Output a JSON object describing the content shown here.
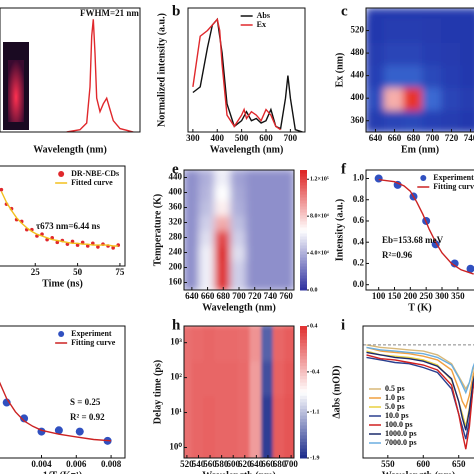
{
  "chart_data": [
    {
      "type": "line",
      "xlabel": "Wavelength (nm)",
      "xlim": [
        400,
        820
      ],
      "ylim": [
        0,
        1.1
      ],
      "annotations": [
        "FWHM=21 nm"
      ],
      "series": [
        {
          "color": "#e0282c",
          "mode": "line",
          "x": [
            600,
            640,
            660,
            670,
            675,
            680,
            685,
            690,
            700,
            710,
            720,
            730,
            740,
            760,
            800
          ],
          "values": [
            0,
            0.02,
            0.08,
            0.4,
            0.85,
            1.0,
            0.7,
            0.3,
            0.18,
            0.25,
            0.3,
            0.2,
            0.1,
            0.03,
            0
          ]
        }
      ]
    },
    {
      "type": "line",
      "panel": "b",
      "xlabel": "Wavelength (nm)",
      "ylabel": "Normalized intensity (a.u.)",
      "xlim": [
        280,
        760
      ],
      "xticks": [
        300,
        400,
        500,
        600,
        700
      ],
      "ylim": [
        0,
        1.1
      ],
      "legend": "upper right",
      "series": [
        {
          "name": "Abs",
          "color": "#111111",
          "mode": "line",
          "x": [
            300,
            330,
            360,
            380,
            400,
            420,
            440,
            470,
            500,
            520,
            540,
            560,
            580,
            600,
            620,
            640,
            660,
            680,
            690,
            700,
            720,
            750
          ],
          "values": [
            0.35,
            0.4,
            0.75,
            0.95,
            1.0,
            0.7,
            0.25,
            0.05,
            0.1,
            0.18,
            0.1,
            0.12,
            0.08,
            0.1,
            0.2,
            0.05,
            0.03,
            0.3,
            0.5,
            0.3,
            0.02,
            0
          ]
        },
        {
          "name": "Ex",
          "color": "#e0282c",
          "mode": "line",
          "x": [
            300,
            330,
            360,
            380,
            400,
            410,
            420,
            440,
            470,
            500,
            510,
            520,
            540,
            560,
            580,
            600,
            620,
            640,
            660
          ],
          "values": [
            0.4,
            0.85,
            0.9,
            0.95,
            1.0,
            0.9,
            0.6,
            0.15,
            0.05,
            0.15,
            0.2,
            0.12,
            0.18,
            0.15,
            0.1,
            0.2,
            0.15,
            0.05,
            0.02
          ]
        }
      ]
    },
    {
      "type": "heatmap",
      "panel": "c",
      "xlabel": "Em (nm)",
      "ylabel": "Ex (nm)",
      "x": [
        640,
        660,
        680,
        700,
        720,
        740
      ],
      "y": [
        360,
        400,
        440,
        480,
        520
      ],
      "xlim": [
        630,
        750
      ],
      "ylim": [
        340,
        560
      ],
      "xticks": [
        640,
        660,
        680,
        700,
        720,
        740
      ],
      "yticks": [
        360,
        400,
        440,
        480,
        520
      ],
      "zlim": [
        0,
        1
      ],
      "colormap": [
        "#2233aa",
        "#3d6fd6",
        "#ffffff",
        "#e8342a"
      ],
      "z": [
        [
          0.05,
          0.1,
          0.12,
          0.08,
          0.05,
          0.03
        ],
        [
          0.15,
          0.8,
          1.0,
          0.3,
          0.1,
          0.05
        ],
        [
          0.08,
          0.25,
          0.25,
          0.12,
          0.06,
          0.03
        ],
        [
          0.05,
          0.1,
          0.1,
          0.06,
          0.04,
          0.02
        ],
        [
          0.03,
          0.05,
          0.05,
          0.04,
          0.03,
          0.02
        ]
      ]
    },
    {
      "type": "line",
      "xlabel": "Time (ns)",
      "xlim": [
        3,
        78
      ],
      "xticks": [
        25,
        50,
        75
      ],
      "ylim": [
        0,
        1.1
      ],
      "legend": "upper right",
      "annotations": [
        "τ673 nm=6.44 ns"
      ],
      "series": [
        {
          "name": "DR-NBE-CDs",
          "color": "#e0282c",
          "mode": "markers",
          "x": [
            5,
            8,
            11,
            14,
            17,
            20,
            23,
            26,
            29,
            32,
            35,
            38,
            41,
            44,
            47,
            50,
            53,
            56,
            59,
            62,
            65,
            68,
            71,
            74
          ],
          "values": [
            0.84,
            0.68,
            0.63,
            0.51,
            0.49,
            0.4,
            0.4,
            0.33,
            0.35,
            0.29,
            0.31,
            0.26,
            0.28,
            0.24,
            0.27,
            0.23,
            0.26,
            0.22,
            0.25,
            0.21,
            0.24,
            0.22,
            0.2,
            0.23
          ]
        },
        {
          "name": "Fitted curve",
          "color": "#f2c01e",
          "mode": "line",
          "x": [
            5,
            8,
            11,
            14,
            17,
            20,
            23,
            26,
            29,
            32,
            35,
            38,
            41,
            44,
            47,
            50,
            53,
            56,
            59,
            62,
            65,
            68,
            71,
            74
          ],
          "values": [
            0.82,
            0.7,
            0.61,
            0.53,
            0.47,
            0.42,
            0.38,
            0.35,
            0.33,
            0.31,
            0.29,
            0.28,
            0.27,
            0.26,
            0.25,
            0.25,
            0.24,
            0.24,
            0.23,
            0.23,
            0.23,
            0.23,
            0.22,
            0.22
          ]
        }
      ]
    },
    {
      "type": "heatmap",
      "panel": "e",
      "xlabel": "Wavelength (nm)",
      "ylabel": "Temperature (K)",
      "x": [
        640,
        660,
        680,
        700,
        720,
        740,
        760
      ],
      "y": [
        160,
        200,
        240,
        280,
        320,
        360,
        400,
        440
      ],
      "xlim": [
        630,
        770
      ],
      "ylim": [
        140,
        460
      ],
      "xticks": [
        640,
        660,
        680,
        700,
        720,
        740,
        760
      ],
      "yticks": [
        160,
        200,
        240,
        280,
        320,
        360,
        400,
        440
      ],
      "zlim": [
        0,
        130000
      ],
      "colormap": [
        "#2d2f9e",
        "#ffffff",
        "#dd2222"
      ],
      "cbticks": [
        {
          "value": 120000,
          "label": "1.2×10⁵"
        },
        {
          "value": 80000,
          "label": "8.0×10⁴"
        },
        {
          "value": 40000,
          "label": "4.0×10⁴"
        },
        {
          "value": 0,
          "label": "0.0"
        }
      ],
      "z": [
        [
          30000,
          60000,
          125000,
          50000,
          30000,
          30000,
          30000
        ],
        [
          30000,
          60000,
          125000,
          50000,
          30000,
          30000,
          30000
        ],
        [
          30000,
          60000,
          128000,
          55000,
          30000,
          30000,
          30000
        ],
        [
          30000,
          55000,
          120000,
          50000,
          30000,
          30000,
          30000
        ],
        [
          30000,
          50000,
          90000,
          45000,
          30000,
          30000,
          30000
        ],
        [
          30000,
          45000,
          70000,
          40000,
          30000,
          30000,
          30000
        ],
        [
          30000,
          42000,
          65000,
          38000,
          30000,
          30000,
          30000
        ],
        [
          30000,
          40000,
          60000,
          36000,
          30000,
          30000,
          30000
        ]
      ]
    },
    {
      "type": "line",
      "panel": "f",
      "xlabel": "T (K)",
      "ylabel": "Intensity (a.u.)",
      "xlim": [
        60,
        420
      ],
      "xticks": [
        100,
        150,
        200,
        250,
        300,
        350
      ],
      "ylim": [
        -0.05,
        1.08
      ],
      "yticks": [
        {
          "value": 0,
          "label": "0.0"
        },
        0.2,
        0.4,
        0.6,
        0.8,
        {
          "value": 1,
          "label": "1.0"
        }
      ],
      "legend": "upper right",
      "annotations": [
        "Eb=153.68 meV",
        "R²=0.96"
      ],
      "series": [
        {
          "name": "Experiment",
          "color": "#3050c0",
          "mode": "markers",
          "x": [
            100,
            160,
            210,
            250,
            280,
            340,
            390
          ],
          "values": [
            1.0,
            0.94,
            0.83,
            0.6,
            0.38,
            0.2,
            0.15
          ]
        },
        {
          "name": "Fitting curve",
          "color": "#cc2222",
          "mode": "line",
          "x": [
            100,
            150,
            180,
            200,
            220,
            240,
            260,
            280,
            300,
            330,
            360,
            400
          ],
          "values": [
            0.99,
            0.97,
            0.93,
            0.88,
            0.78,
            0.66,
            0.52,
            0.4,
            0.3,
            0.2,
            0.14,
            0.1
          ]
        }
      ]
    },
    {
      "type": "line",
      "xlabel": "1/T (K⁻¹)",
      "xlim": [
        0.0015,
        0.0088
      ],
      "xticks": [
        0.004,
        0.006,
        0.008
      ],
      "ylim": [
        0,
        1
      ],
      "legend": "upper right",
      "annotations": [
        "S = 0.25",
        "R² = 0.92"
      ],
      "series": [
        {
          "name": "Experiment",
          "color": "#3050c0",
          "mode": "markers",
          "x": [
            0.002,
            0.003,
            0.004,
            0.005,
            0.0062,
            0.0078
          ],
          "values": [
            0.42,
            0.3,
            0.2,
            0.21,
            0.2,
            0.13
          ]
        },
        {
          "name": "Fitting curve",
          "color": "#cc2222",
          "mode": "line",
          "x": [
            0.0015,
            0.002,
            0.0025,
            0.003,
            0.0035,
            0.004,
            0.005,
            0.006,
            0.007,
            0.008
          ],
          "values": [
            0.6,
            0.45,
            0.35,
            0.28,
            0.24,
            0.21,
            0.18,
            0.16,
            0.14,
            0.13
          ]
        }
      ]
    },
    {
      "type": "heatmap",
      "panel": "h",
      "xlabel": "Wavelength (nm)",
      "ylabel": "Delay time (ps)",
      "ylog": true,
      "x": [
        520,
        540,
        560,
        580,
        600,
        620,
        640,
        660,
        680,
        700
      ],
      "y": [
        1,
        10,
        100,
        1000
      ],
      "xlim": [
        515,
        705
      ],
      "ylim": [
        0.5,
        3000
      ],
      "xticks": [
        520,
        540,
        560,
        580,
        600,
        620,
        640,
        660,
        680,
        700
      ],
      "yticks": [
        {
          "value": 1,
          "label": "10⁰"
        },
        {
          "value": 10,
          "label": "10¹"
        },
        {
          "value": 100,
          "label": "10²"
        },
        {
          "value": 1000,
          "label": "10³"
        }
      ],
      "zlim": [
        -1.9,
        0.4
      ],
      "colormap": [
        "#1a2a8a",
        "#ffffff",
        "#e03030"
      ],
      "cbticks": [
        0.4,
        -0.4,
        -1.1,
        -1.9
      ],
      "z": [
        [
          0.05,
          0.1,
          0.12,
          0.1,
          0.1,
          0.08,
          -0.2,
          -1.8,
          0.15,
          0.2
        ],
        [
          0.05,
          0.1,
          0.12,
          0.1,
          0.1,
          0.08,
          -0.2,
          -1.8,
          0.15,
          0.2
        ],
        [
          0.05,
          0.1,
          0.1,
          0.1,
          0.1,
          0.08,
          -0.2,
          -1.7,
          0.12,
          0.18
        ],
        [
          0.05,
          0.08,
          0.1,
          0.08,
          0.08,
          0.06,
          -0.15,
          -1.6,
          0.1,
          0.15
        ]
      ]
    },
    {
      "type": "line",
      "panel": "i",
      "xlabel": "Wavelength (nm)",
      "ylabel": "Δabs (mOD)",
      "xlim": [
        515,
        680
      ],
      "xticks": [
        550,
        600,
        650
      ],
      "ylim": [
        -9,
        1.5
      ],
      "legend": "lower left",
      "series": [
        {
          "name": "0.5 ps",
          "color": "#d8b878",
          "mode": "line",
          "x": [
            520,
            540,
            560,
            580,
            600,
            620,
            640,
            650,
            655,
            660,
            665,
            670,
            680
          ],
          "values": [
            0,
            -0.2,
            -0.3,
            -0.4,
            -0.5,
            -0.8,
            -1.5,
            -2.5,
            -3,
            -3.5,
            -3,
            -2,
            -0.5
          ]
        },
        {
          "name": "1.0 ps",
          "color": "#f0a040",
          "mode": "line",
          "x": [
            520,
            540,
            560,
            580,
            600,
            620,
            640,
            650,
            655,
            660,
            665,
            670,
            680
          ],
          "values": [
            -0.2,
            -0.5,
            -0.6,
            -0.7,
            -0.9,
            -1.2,
            -2,
            -3.5,
            -4.5,
            -5,
            -4,
            -2.5,
            -0.5
          ]
        },
        {
          "name": "5.0 ps",
          "color": "#e8d040",
          "mode": "line",
          "x": [
            520,
            540,
            560,
            580,
            600,
            620,
            640,
            650,
            655,
            660,
            665,
            670,
            680
          ],
          "values": [
            -0.5,
            -0.8,
            -0.9,
            -1,
            -1.2,
            -1.6,
            -2.8,
            -4.5,
            -5.5,
            -6.5,
            -5,
            -3,
            -0.5
          ]
        },
        {
          "name": "10.0 ps",
          "color": "#2a3f8f",
          "mode": "line",
          "x": [
            520,
            540,
            560,
            580,
            600,
            620,
            640,
            650,
            655,
            660,
            665,
            670,
            680
          ],
          "values": [
            -1,
            -1.2,
            -1.4,
            -1.5,
            -1.8,
            -2.2,
            -3.5,
            -5.5,
            -6.5,
            -7.5,
            -6,
            -3.5,
            -0.8
          ]
        },
        {
          "name": "100.0 ps",
          "color": "#d02020",
          "mode": "line",
          "x": [
            520,
            540,
            560,
            580,
            600,
            620,
            640,
            650,
            655,
            660,
            665,
            670,
            680
          ],
          "values": [
            -0.8,
            -1.1,
            -1.2,
            -1.4,
            -1.6,
            -2,
            -3.2,
            -5.5,
            -7,
            -8.3,
            -6.5,
            -3.5,
            -0.7
          ]
        },
        {
          "name": "1000.0 ps",
          "color": "#1a2a6a",
          "mode": "line",
          "x": [
            520,
            540,
            560,
            580,
            600,
            620,
            640,
            650,
            655,
            660,
            665,
            670,
            680
          ],
          "values": [
            -0.6,
            -0.8,
            -1,
            -1.1,
            -1.3,
            -1.7,
            -2.7,
            -4.5,
            -5.8,
            -6.8,
            -5.2,
            -3,
            -0.6
          ]
        },
        {
          "name": "7000.0 ps",
          "color": "#6aaee0",
          "mode": "line",
          "x": [
            520,
            540,
            560,
            580,
            600,
            620,
            640,
            650,
            655,
            660,
            665,
            670,
            680
          ],
          "values": [
            -0.2,
            -0.4,
            -0.5,
            -0.6,
            -0.7,
            -1,
            -1.6,
            -2.6,
            -3.2,
            -3.8,
            -3,
            -1.8,
            -0.3
          ]
        }
      ]
    }
  ]
}
